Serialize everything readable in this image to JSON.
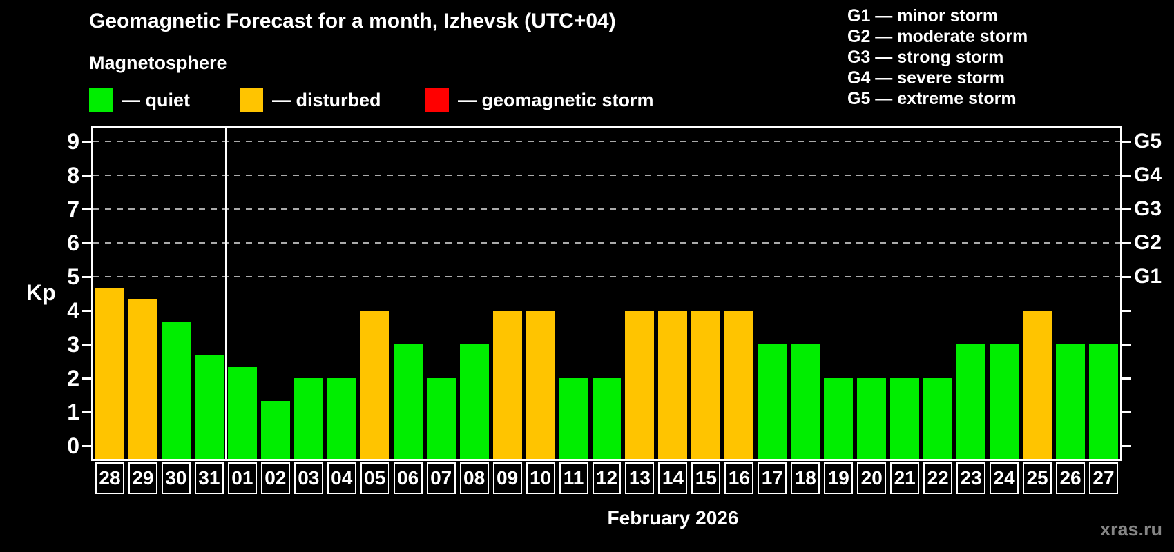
{
  "title": "Geomagnetic Forecast for a month, Izhevsk (UTC+04)",
  "subtitle": "Magnetosphere",
  "legend": {
    "items": [
      {
        "key": "quiet",
        "label": "— quiet",
        "color": "#00ee00"
      },
      {
        "key": "disturbed",
        "label": "— disturbed",
        "color": "#ffc400"
      },
      {
        "key": "storm",
        "label": "— geomagnetic storm",
        "color": "#ff0000"
      }
    ]
  },
  "storm_scale": [
    {
      "code": "G1",
      "text": "G1 — minor storm"
    },
    {
      "code": "G2",
      "text": "G2 — moderate storm"
    },
    {
      "code": "G3",
      "text": "G3 — strong storm"
    },
    {
      "code": "G4",
      "text": "G4 — severe storm"
    },
    {
      "code": "G5",
      "text": "G5 — extreme storm"
    }
  ],
  "footer": {
    "watermark": "xras.ru"
  },
  "chart_data": {
    "type": "bar",
    "title": "Geomagnetic Forecast for a month, Izhevsk (UTC+04)",
    "ylabel": "Kp",
    "xlabel": "February 2026",
    "ylim": [
      0,
      9
    ],
    "yticks": [
      0,
      1,
      2,
      3,
      4,
      5,
      6,
      7,
      8,
      9
    ],
    "gridlines_at": [
      5,
      6,
      7,
      8,
      9
    ],
    "grid": true,
    "legend_position": "top",
    "right_axis": [
      {
        "kp": 5,
        "label": "G1"
      },
      {
        "kp": 6,
        "label": "G2"
      },
      {
        "kp": 7,
        "label": "G3"
      },
      {
        "kp": 8,
        "label": "G4"
      },
      {
        "kp": 9,
        "label": "G5"
      }
    ],
    "month_divider_after_index": 3,
    "categories": [
      "28",
      "29",
      "30",
      "31",
      "01",
      "02",
      "03",
      "04",
      "05",
      "06",
      "07",
      "08",
      "09",
      "10",
      "11",
      "12",
      "13",
      "14",
      "15",
      "16",
      "17",
      "18",
      "19",
      "20",
      "21",
      "22",
      "23",
      "24",
      "25",
      "26",
      "27"
    ],
    "values": [
      4.67,
      4.33,
      3.67,
      2.67,
      2.33,
      1.33,
      2,
      2,
      4,
      3,
      2,
      3,
      4,
      4,
      2,
      2,
      4,
      4,
      4,
      4,
      3,
      3,
      2,
      2,
      2,
      2,
      3,
      3,
      4,
      3,
      3
    ],
    "statuses": [
      "disturbed",
      "disturbed",
      "quiet",
      "quiet",
      "quiet",
      "quiet",
      "quiet",
      "quiet",
      "disturbed",
      "quiet",
      "quiet",
      "quiet",
      "disturbed",
      "disturbed",
      "quiet",
      "quiet",
      "disturbed",
      "disturbed",
      "disturbed",
      "disturbed",
      "quiet",
      "quiet",
      "quiet",
      "quiet",
      "quiet",
      "quiet",
      "quiet",
      "quiet",
      "disturbed",
      "quiet",
      "quiet"
    ],
    "status_colors": {
      "quiet": "#00ee00",
      "disturbed": "#ffc400",
      "storm": "#ff0000"
    }
  }
}
